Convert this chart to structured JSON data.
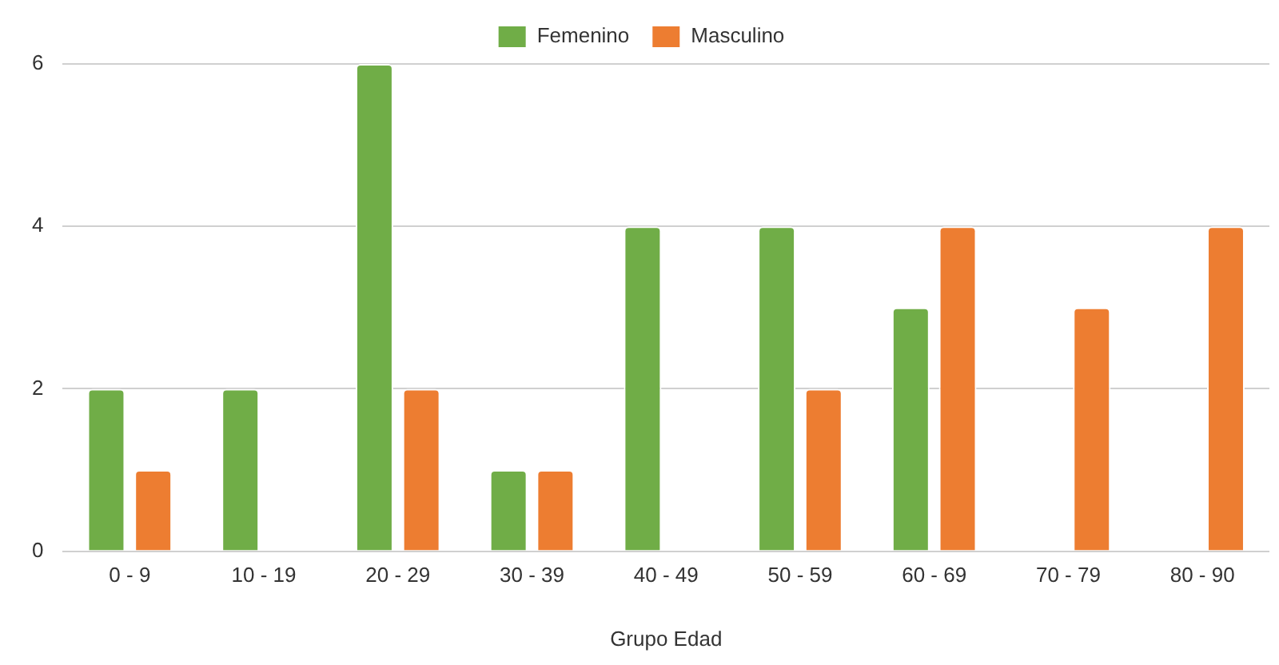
{
  "chart_data": {
    "type": "bar",
    "xlabel": "Grupo Edad",
    "categories": [
      "0 - 9",
      "10 - 19",
      "20 - 29",
      "30 - 39",
      "40 - 49",
      "50 - 59",
      "60 - 69",
      "70 - 79",
      "80 - 90"
    ],
    "series": [
      {
        "name": "Femenino",
        "color": "#70ad47",
        "values": [
          2,
          2,
          6,
          1,
          4,
          4,
          3,
          0,
          0
        ]
      },
      {
        "name": "Masculino",
        "color": "#ed7d31",
        "values": [
          1,
          0,
          2,
          1,
          0,
          2,
          4,
          3,
          4
        ]
      }
    ],
    "ylim": [
      0,
      6
    ],
    "yticks": [
      0,
      2,
      4,
      6
    ],
    "grid": "y",
    "legend": "top"
  }
}
